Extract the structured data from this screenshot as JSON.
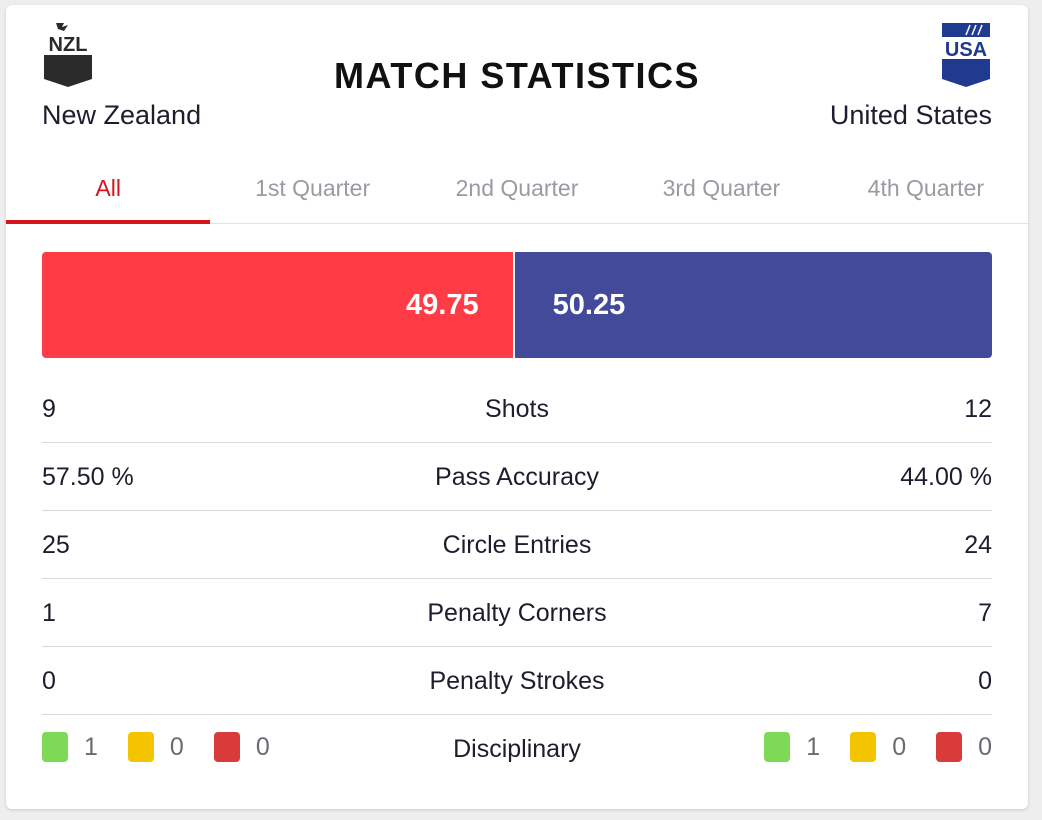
{
  "header": {
    "title": "MATCH STATISTICS",
    "home": {
      "code": "NZL",
      "name": "New Zealand",
      "crest_color": "#2b2b2b"
    },
    "away": {
      "code": "USA",
      "name": "United States",
      "crest_color": "#1f3a8f"
    }
  },
  "tabs": [
    {
      "label": "All",
      "active": true
    },
    {
      "label": "1st Quarter",
      "active": false
    },
    {
      "label": "2nd Quarter",
      "active": false
    },
    {
      "label": "3rd Quarter",
      "active": false
    },
    {
      "label": "4th Quarter",
      "active": false
    }
  ],
  "possession": {
    "home": "49.75",
    "away": "50.25",
    "home_percent": 49.75,
    "home_color": "#ff3b46",
    "away_color": "#434a9a"
  },
  "stats": [
    {
      "home": "9",
      "label": "Shots",
      "away": "12"
    },
    {
      "home": "57.50 %",
      "label": "Pass Accuracy",
      "away": "44.00 %"
    },
    {
      "home": "25",
      "label": "Circle Entries",
      "away": "24"
    },
    {
      "home": "1",
      "label": "Penalty Corners",
      "away": "7"
    },
    {
      "home": "0",
      "label": "Penalty Strokes",
      "away": "0"
    }
  ],
  "disciplinary": {
    "label": "Disciplinary",
    "home": {
      "green": "1",
      "yellow": "0",
      "red": "0"
    },
    "away": {
      "green": "1",
      "yellow": "0",
      "red": "0"
    },
    "colors": {
      "green": "#7ed957",
      "yellow": "#f5c400",
      "red": "#d93a3a"
    }
  }
}
